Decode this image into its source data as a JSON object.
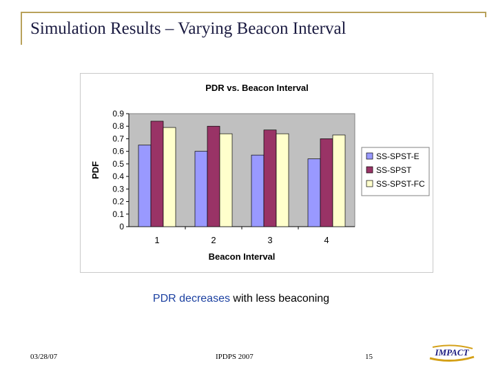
{
  "slide": {
    "title": "Simulation Results – Varying Beacon Interval",
    "caption_highlight": "PDR decreases",
    "caption_rest": " with less beaconing",
    "footer_date": "03/28/07",
    "footer_conf": "IPDPS 2007",
    "footer_page": "15",
    "logo_text": "IMPACT",
    "frame_color": "#b8a15a"
  },
  "chart_data": {
    "type": "bar",
    "title": "PDR vs. Beacon Interval",
    "xlabel": "Beacon Interval",
    "ylabel": "PDF",
    "categories": [
      "1",
      "2",
      "3",
      "4"
    ],
    "series": [
      {
        "name": "SS-SPST-E",
        "values": [
          0.65,
          0.6,
          0.57,
          0.54
        ],
        "color": "#9999ff"
      },
      {
        "name": "SS-SPST",
        "values": [
          0.84,
          0.8,
          0.77,
          0.7
        ],
        "color": "#993366"
      },
      {
        "name": "SS-SPST-FC",
        "values": [
          0.79,
          0.74,
          0.74,
          0.73
        ],
        "color": "#ffffcc"
      }
    ],
    "ylim": [
      0,
      0.9
    ],
    "yticks": [
      "0",
      "0.1",
      "0.2",
      "0.3",
      "0.4",
      "0.5",
      "0.6",
      "0.7",
      "0.8",
      "0.9"
    ],
    "plot_background": "#c0c0c0",
    "grid": false,
    "legend_position": "right"
  }
}
